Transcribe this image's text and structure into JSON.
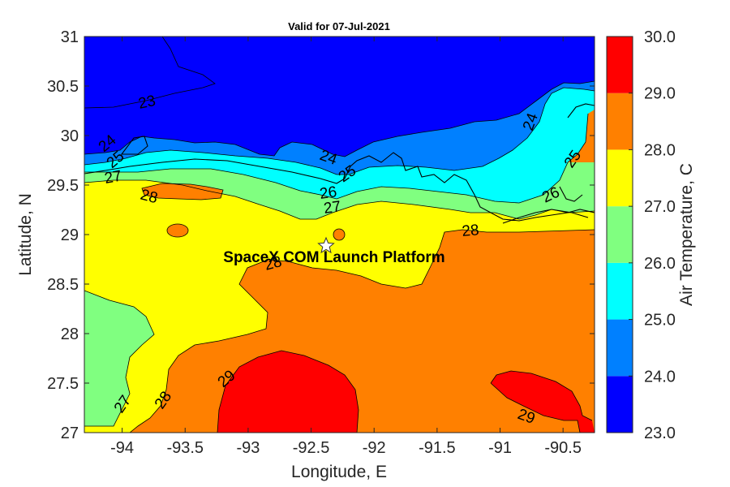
{
  "chart_data": {
    "type": "map",
    "title": "Valid for 07-Jul-2021",
    "xlabel": "Longitude, E",
    "ylabel": "Latitude, N",
    "xlim": [
      -94.3,
      -90.25
    ],
    "ylim": [
      27,
      31
    ],
    "x_ticks": [
      -94,
      -93.5,
      -93,
      -92.5,
      -92,
      -91.5,
      -91,
      -90.5
    ],
    "x_tick_labels": [
      "-94",
      "-93.5",
      "-93",
      "-92.5",
      "-92",
      "-91.5",
      "-91",
      "-90.5"
    ],
    "y_ticks": [
      27,
      27.5,
      28,
      28.5,
      29,
      29.5,
      30,
      30.5,
      31
    ],
    "y_tick_labels": [
      "27",
      "27.5",
      "28",
      "28.5",
      "29",
      "29.5",
      "30",
      "30.5",
      "31"
    ],
    "colorbar": {
      "label": "Air Temperature, C",
      "ticks": [
        "23.0",
        "24.0",
        "25.0",
        "26.0",
        "27.0",
        "28.0",
        "29.0",
        "30.0"
      ],
      "levels": [
        23,
        24,
        25,
        26,
        27,
        28,
        29,
        30
      ],
      "colors": [
        "#0000ff",
        "#0080ff",
        "#00ffff",
        "#80ff80",
        "#ffff00",
        "#ff8000",
        "#ff0000"
      ]
    },
    "contour_labels": [
      {
        "text": "23",
        "lon": -93.72,
        "lat": 30.33
      },
      {
        "text": "24",
        "lon": -94.05,
        "lat": 29.93
      },
      {
        "text": "25",
        "lon": -94.02,
        "lat": 29.8
      },
      {
        "text": "27",
        "lon": -94.05,
        "lat": 29.6
      },
      {
        "text": "28",
        "lon": -93.82,
        "lat": 29.41
      },
      {
        "text": "24",
        "lon": -92.5,
        "lat": 29.83
      },
      {
        "text": "25",
        "lon": -92.27,
        "lat": 29.62
      },
      {
        "text": "26",
        "lon": -92.28,
        "lat": 29.42
      },
      {
        "text": "27",
        "lon": -92.26,
        "lat": 29.28
      },
      {
        "text": "28",
        "lon": -92.62,
        "lat": 28.72
      },
      {
        "text": "28",
        "lon": -91.25,
        "lat": 29.03
      },
      {
        "text": "24",
        "lon": -90.82,
        "lat": 30.15
      },
      {
        "text": "25",
        "lon": -90.52,
        "lat": 29.78
      },
      {
        "text": "26",
        "lon": -90.72,
        "lat": 29.41
      },
      {
        "text": "29",
        "lon": -93.2,
        "lat": 27.55
      },
      {
        "text": "28",
        "lon": -93.77,
        "lat": 27.34
      },
      {
        "text": "27",
        "lon": -94.1,
        "lat": 27.3
      },
      {
        "text": "29",
        "lon": -90.98,
        "lat": 27.13
      }
    ],
    "marker": {
      "symbol": "star",
      "lon": -92.35,
      "lat": 28.9
    },
    "annotation": {
      "text": "SpaceX COM Launch Platform",
      "lon": -92.35,
      "lat": 28.78
    }
  }
}
